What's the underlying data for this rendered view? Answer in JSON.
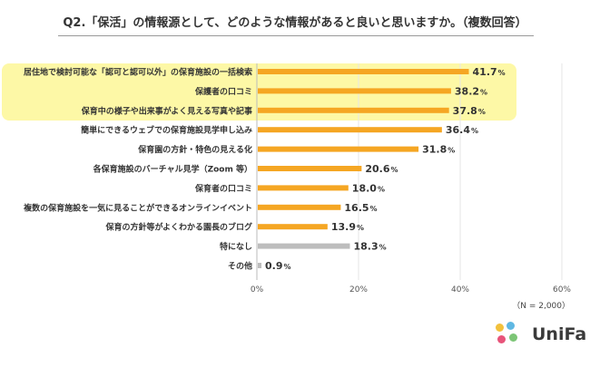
{
  "title": "Q2.「保活」の情報源として、どのような情報があると良いと思いますか。（複数回答）",
  "note": "（N = 2,000）",
  "logo": {
    "text": "UniFa",
    "colors": [
      "#f2c13c",
      "#5fb8e3",
      "#e8547a",
      "#7cc576"
    ]
  },
  "colors": {
    "bar": "#f5a623",
    "bar_other": "#bdbdbd",
    "highlight": "#fdf8a6",
    "grid": "#e6e6e6"
  },
  "chart_data": {
    "type": "bar",
    "orientation": "horizontal",
    "title": "Q2.「保活」の情報源として、どのような情報があると良いと思いますか。（複数回答）",
    "categories": [
      "居住地で検討可能な「認可と認可以外」の保育施設の一括検索",
      "保護者の口コミ",
      "保育中の様子や出来事がよく見える写真や記事",
      "簡単にできるウェブでの保育施設見学申し込み",
      "保育園の方針・特色の見える化",
      "各保育施設のバーチャル見学（Zoom 等）",
      "保育者の口コミ",
      "複数の保育施設を一気に見ることができるオンラインイベント",
      "保育の方針等がよくわかる園長のブログ",
      "特になし",
      "その他"
    ],
    "values": [
      41.7,
      38.2,
      37.8,
      36.4,
      31.8,
      20.6,
      18.0,
      16.5,
      13.9,
      18.3,
      0.9
    ],
    "value_labels": [
      "41.7",
      "38.2",
      "37.8",
      "36.4",
      "31.8",
      "20.6",
      "18.0",
      "16.5",
      "13.9",
      "18.3",
      "0.9"
    ],
    "unit": "%",
    "gray_from_index": 9,
    "highlighted_indices": [
      0,
      1,
      2
    ],
    "xlim": [
      0,
      60
    ],
    "xticks": [
      "0%",
      "20%",
      "40%",
      "60%"
    ],
    "xtick_values": [
      0,
      20,
      40,
      60
    ],
    "grid": true
  }
}
